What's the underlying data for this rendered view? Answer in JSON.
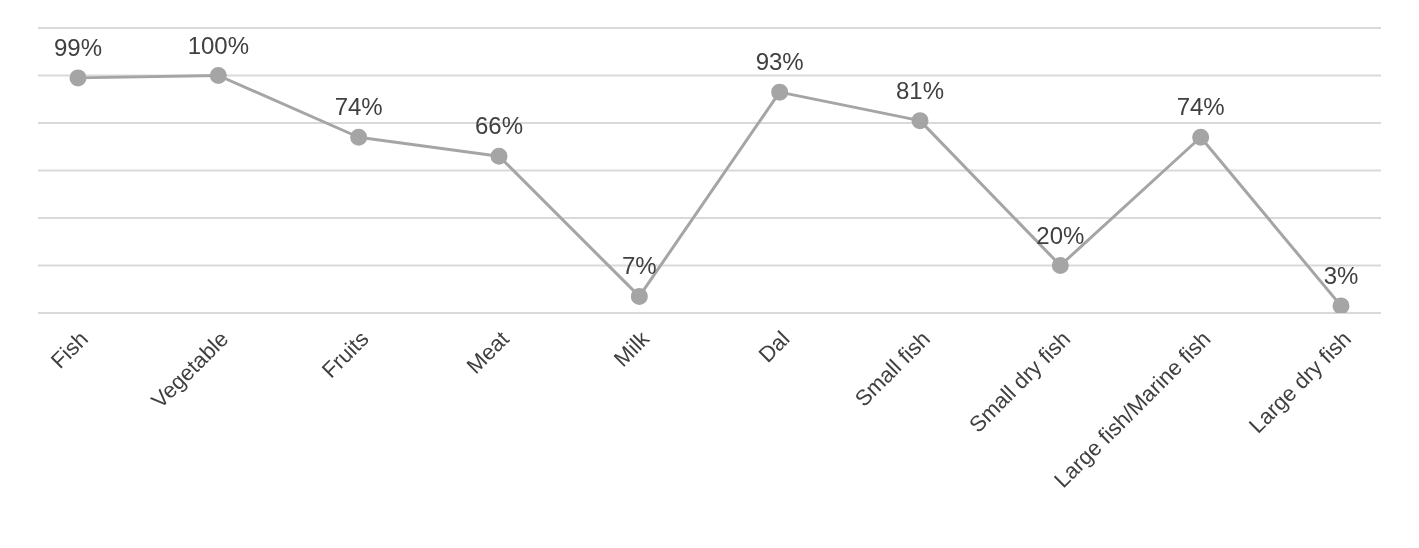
{
  "chart_data": {
    "type": "line",
    "categories": [
      "Fish",
      "Vegetable",
      "Fruits",
      "Meat",
      "Milk",
      "Dal",
      "Small fish",
      "Small dry fish",
      "Large fish/Marine fish",
      "Large dry fish"
    ],
    "series": [
      {
        "color": "#a5a5a5",
        "values": [
          99,
          100,
          74,
          66,
          7,
          93,
          81,
          20,
          74,
          3
        ],
        "value_labels": [
          "99%",
          "100%",
          "74%",
          "66%",
          "7%",
          "93%",
          "81%",
          "20%",
          "74%",
          "3%"
        ]
      }
    ],
    "ylim": [
      0,
      120
    ],
    "yticks": [
      {
        "value": 0,
        "label": null
      },
      {
        "value": 20,
        "label": null
      },
      {
        "value": 40,
        "label": null
      },
      {
        "value": 60,
        "label": null
      },
      {
        "value": 80,
        "label": null
      },
      {
        "value": 100,
        "label": null
      },
      {
        "value": 120,
        "label": null
      }
    ],
    "grid": "y",
    "tick_labels": "x",
    "marker": "circle",
    "legend": false
  }
}
